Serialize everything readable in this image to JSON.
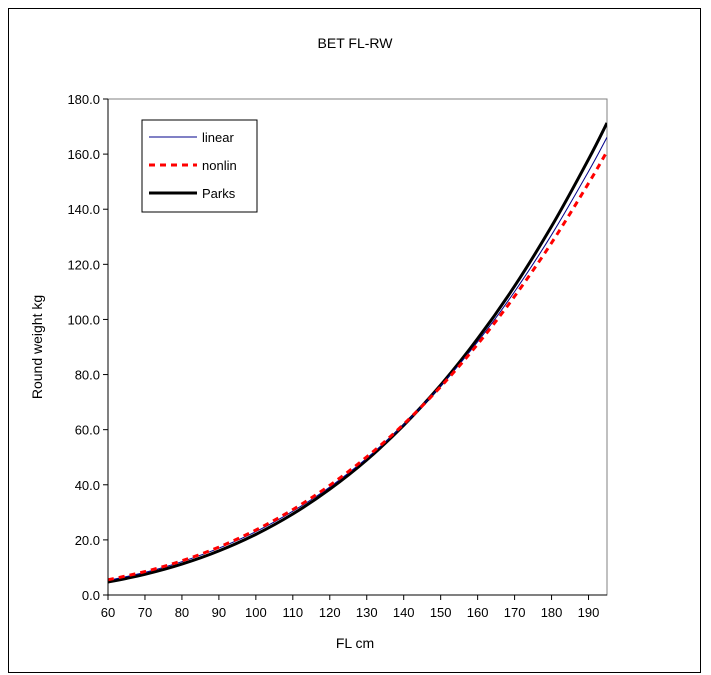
{
  "chart_data": {
    "type": "line",
    "title": "BET FL-RW",
    "xlabel": "FL cm",
    "ylabel": "Round weight kg",
    "xlim": [
      60,
      195
    ],
    "ylim": [
      0,
      180
    ],
    "x_ticks": [
      "60",
      "70",
      "80",
      "90",
      "100",
      "110",
      "120",
      "130",
      "140",
      "150",
      "160",
      "170",
      "180",
      "190"
    ],
    "y_ticks": [
      "0.0",
      "20.0",
      "40.0",
      "60.0",
      "80.0",
      "100.0",
      "120.0",
      "140.0",
      "160.0",
      "180.0"
    ],
    "grid": false,
    "legend_position": "top-left",
    "x": [
      60,
      70,
      80,
      90,
      100,
      110,
      120,
      130,
      140,
      150,
      160,
      170,
      180,
      190,
      195
    ],
    "series": [
      {
        "name": "linear",
        "color": "#00008b",
        "style": "solid",
        "values": [
          5.3,
          8.2,
          12.1,
          17.0,
          23.0,
          30.4,
          39.2,
          49.6,
          61.8,
          75.9,
          91.9,
          110.1,
          130.7,
          153.7,
          166.1
        ]
      },
      {
        "name": "nonlin",
        "color": "#ff0000",
        "style": "dashed",
        "values": [
          5.5,
          8.5,
          12.4,
          17.4,
          23.6,
          31.0,
          39.8,
          50.1,
          62.0,
          75.6,
          91.0,
          108.4,
          127.8,
          149.4,
          161.0
        ]
      },
      {
        "name": "Parks",
        "color": "#000000",
        "style": "thick",
        "values": [
          4.7,
          7.5,
          11.2,
          16.0,
          22.0,
          29.4,
          38.4,
          49.0,
          61.6,
          76.2,
          93.0,
          112.1,
          133.8,
          158.1,
          171.3
        ]
      }
    ]
  }
}
